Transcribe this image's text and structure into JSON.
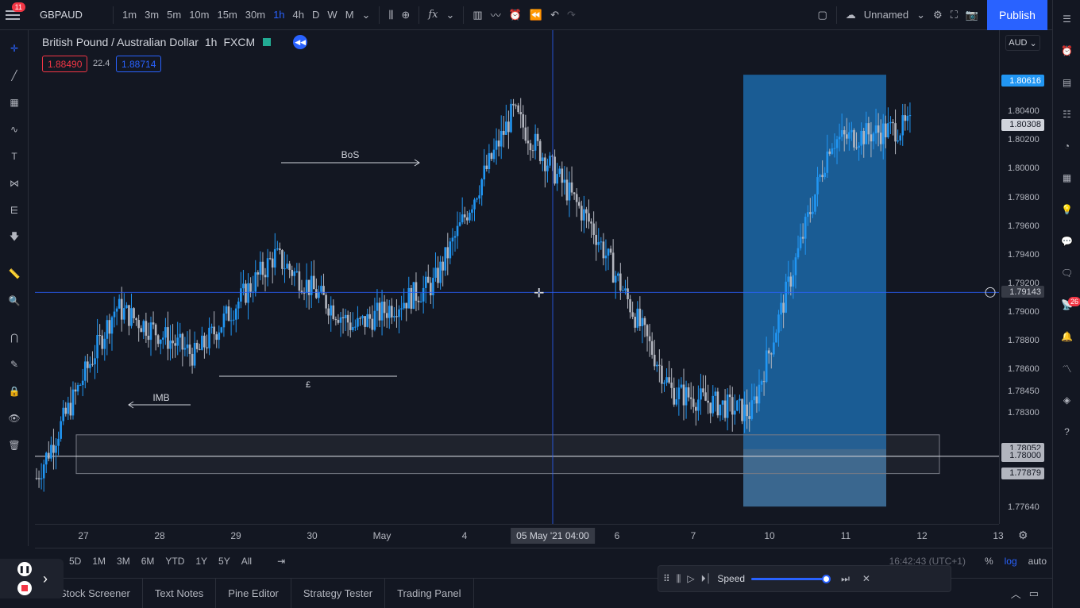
{
  "app": {
    "symbol_short": "GBPAUD",
    "notif_count": "11",
    "layout_name": "Unnamed",
    "publish_label": "Publish"
  },
  "intervals": [
    "1m",
    "3m",
    "5m",
    "10m",
    "15m",
    "30m",
    "1h",
    "4h",
    "D",
    "W",
    "M"
  ],
  "active_interval": "1h",
  "legend": {
    "title": "British Pound / Australian Dollar",
    "interval": "1h",
    "source": "FXCM"
  },
  "quote": {
    "bid": "1.88490",
    "spread": "22.4",
    "ask": "1.88714"
  },
  "currency": "AUD",
  "colors": {
    "bg": "#131722",
    "accent": "#2962ff",
    "bid": "#f23645",
    "ask": "#2962ff",
    "bull": "#2196f3",
    "bear": "#b2b5be",
    "zone": "#2196f3"
  },
  "price_axis": {
    "labels": [
      "1.80400",
      "1.80200",
      "1.80000",
      "1.79800",
      "1.79600",
      "1.79400",
      "1.79200",
      "1.79000",
      "1.78800",
      "1.78600",
      "1.78450",
      "1.78300",
      "1.77640"
    ],
    "tags": {
      "last": "1.80616",
      "high_mark": "1.80308",
      "crosshair": "1.79143",
      "level1": "1.78052",
      "level2": "1.78000",
      "level3": "1.77879"
    }
  },
  "time_axis": {
    "labels": [
      "27",
      "28",
      "29",
      "30",
      "May",
      "4",
      "5",
      "6",
      "7",
      "10",
      "11",
      "12",
      "13"
    ],
    "crosshair": "05 May '21  04:00"
  },
  "annotations": {
    "bos": "BoS",
    "pound": "£",
    "imb": "IMB"
  },
  "ranges": [
    "5D",
    "1M",
    "3M",
    "6M",
    "YTD",
    "1Y",
    "5Y",
    "All"
  ],
  "range_right": {
    "pct": "%",
    "log": "log",
    "auto": "auto",
    "clock": "16:42:43 (UTC+1)"
  },
  "bottom_tabs": [
    "Stock Screener",
    "Text Notes",
    "Pine Editor",
    "Strategy Tester",
    "Trading Panel"
  ],
  "replay": {
    "speed_label": "Speed"
  },
  "right_badge": "26",
  "chart_data": {
    "type": "candlestick",
    "ylim": [
      1.7764,
      1.8086
    ],
    "x_labels": [
      "27",
      "28",
      "29",
      "30",
      "May",
      "4",
      "5",
      "6",
      "7",
      "10",
      "11",
      "12",
      "13"
    ],
    "path": [
      {
        "x": "27",
        "close": 1.7785
      },
      {
        "x": "28",
        "close": 1.7904
      },
      {
        "x": "29",
        "close": 1.787
      },
      {
        "x": "30",
        "close": 1.794
      },
      {
        "x": "May",
        "close": 1.789
      },
      {
        "x": "4",
        "close": 1.792
      },
      {
        "x": "5",
        "close": 1.804
      },
      {
        "x": "6",
        "close": 1.796
      },
      {
        "x": "7",
        "close": 1.7845
      },
      {
        "x": "10",
        "close": 1.783
      },
      {
        "x": "11",
        "close": 1.802
      },
      {
        "x": "12",
        "close": 1.803
      }
    ]
  }
}
